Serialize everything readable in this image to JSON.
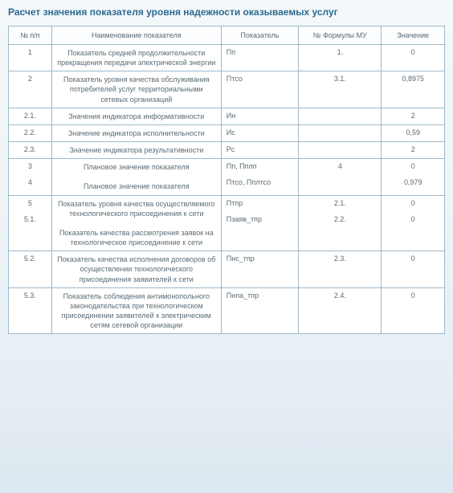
{
  "title_color": "#2a6a8f",
  "border_color": "#9fb8c8",
  "text_color": "#5a6a74",
  "title": "Расчет значения показателя уровня надежности оказываемых услуг",
  "columns": [
    {
      "key": "num",
      "label": "№ п/п"
    },
    {
      "key": "name",
      "label": "Наименование показателя"
    },
    {
      "key": "ind",
      "label": "Показатель"
    },
    {
      "key": "form",
      "label": "№ Формулы МУ"
    },
    {
      "key": "val",
      "label": "Значение"
    }
  ],
  "groups": [
    {
      "rows": [
        {
          "num": "1",
          "name": "Показатель средней продолжительности прекращения передачи электрической энергии",
          "ind": "Пп",
          "form": "1.",
          "val": "0"
        }
      ]
    },
    {
      "rows": [
        {
          "num": "2",
          "name": "Показатель уровня качества обслуживания потребителей услуг территориальными сетевых организаций",
          "ind": "Птсо",
          "form": "3.1.",
          "val": "0,8975"
        }
      ]
    },
    {
      "rows": [
        {
          "num": "2.1.",
          "name": "Значения индикатора информативности",
          "ind": "Ин",
          "form": "",
          "val": "2"
        }
      ]
    },
    {
      "rows": [
        {
          "num": "2.2.",
          "name": "Значение индикатора исполнительности",
          "ind": "Ис",
          "form": "",
          "val": "0,59"
        }
      ]
    },
    {
      "rows": [
        {
          "num": "2.3.",
          "name": "Значение индикатора результативности",
          "ind": "Рс",
          "form": "",
          "val": "2"
        }
      ]
    },
    {
      "rows": [
        {
          "num": "3",
          "name": "Плановое значение показателя",
          "ind": "Пп, Пплп",
          "form": "4",
          "val": "0"
        },
        {
          "num": "4",
          "name": "Плановое значение показателя",
          "ind": "Птсо, Пплтсо",
          "form": "",
          "val": "0,979"
        }
      ]
    },
    {
      "rows": [
        {
          "num": "5",
          "name": "Показатель уровня качества осуществляемого технологического присоединения к сети",
          "ind": "Птпр",
          "form": "2.1.",
          "val": "0"
        },
        {
          "num": "5.1.",
          "name": "Показатель качества рассмотрения заявок на технологическое присоединение к сети",
          "ind": "Пзаяв_тпр",
          "form": "2.2.",
          "val": "0"
        }
      ]
    },
    {
      "rows": [
        {
          "num": "5.2.",
          "name": "Показатель качества исполнения договоров об осуществлении технологического присоединения заявителей к сети",
          "ind": "Пнс_тпр",
          "form": "2.3.",
          "val": "0"
        }
      ]
    },
    {
      "rows": [
        {
          "num": "5.3.",
          "name": "Показатель соблюдения антимонопольного законодательства при технологическом присоединении заявителей к электрическим сетям сетевой организации",
          "ind": "Пнпа_тпр",
          "form": "2.4.",
          "val": "0"
        }
      ]
    }
  ]
}
